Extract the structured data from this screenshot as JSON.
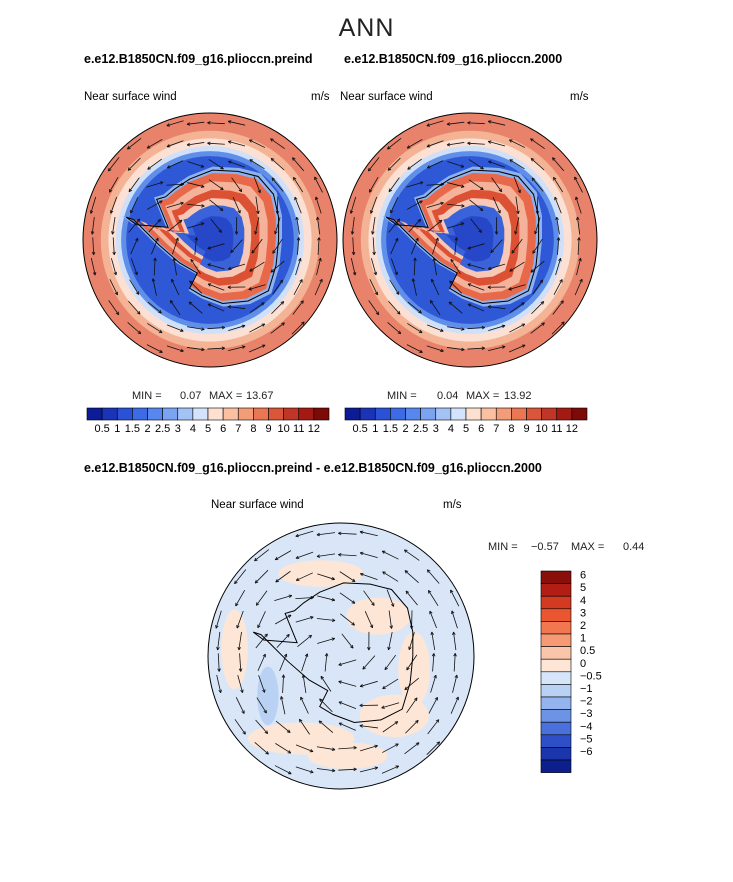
{
  "figure": {
    "title": "ANN",
    "case_a": "e.e12.B1850CN.f09_g16.plioccn.preind",
    "case_b": "e.e12.B1850CN.f09_g16.plioccn.2000",
    "diff_title": "e.e12.B1850CN.f09_g16.plioccn.preind - e.e12.B1850CN.f09_g16.plioccn.2000"
  },
  "chart_data": [
    {
      "type": "heatmap",
      "projection": "south-polar-stereographic",
      "left_label": "Near surface wind",
      "right_label": "m/s",
      "min_label": "MIN =",
      "min_value": "0.07",
      "max_label": "MAX =",
      "max_value": "13.67",
      "colorbar_orientation": "horizontal",
      "colorbar_ticks": [
        "0.5",
        "1",
        "1.5",
        "2",
        "2.5",
        "3",
        "4",
        "5",
        "6",
        "7",
        "8",
        "9",
        "10",
        "11",
        "12"
      ],
      "colorbar_colors": [
        "#0c1b96",
        "#1a33b8",
        "#2a52d6",
        "#3d6be6",
        "#5687ee",
        "#7aa4f2",
        "#a3c3f7",
        "#d2e3fb",
        "#fde0d0",
        "#f9c0a2",
        "#f39c78",
        "#ea7752",
        "#d9563a",
        "#c03526",
        "#a41a13",
        "#7c0a07"
      ],
      "vectors": true
    },
    {
      "type": "heatmap",
      "projection": "south-polar-stereographic",
      "left_label": "Near surface wind",
      "right_label": "m/s",
      "min_label": "MIN =",
      "min_value": "0.04",
      "max_label": "MAX =",
      "max_value": "13.92",
      "colorbar_orientation": "horizontal",
      "colorbar_ticks": [
        "0.5",
        "1",
        "1.5",
        "2",
        "2.5",
        "3",
        "4",
        "5",
        "6",
        "7",
        "8",
        "9",
        "10",
        "11",
        "12"
      ],
      "colorbar_colors": [
        "#0c1b96",
        "#1a33b8",
        "#2a52d6",
        "#3d6be6",
        "#5687ee",
        "#7aa4f2",
        "#a3c3f7",
        "#d2e3fb",
        "#fde0d0",
        "#f9c0a2",
        "#f39c78",
        "#ea7752",
        "#d9563a",
        "#c03526",
        "#a41a13",
        "#7c0a07"
      ],
      "vectors": true
    },
    {
      "type": "heatmap",
      "projection": "south-polar-stereographic",
      "left_label": "Near surface wind",
      "right_label": "m/s",
      "min_label": "MIN =",
      "min_value": "−0.57",
      "max_label": "MAX =",
      "max_value": "0.44",
      "colorbar_orientation": "vertical",
      "colorbar_ticks": [
        "6",
        "5",
        "4",
        "3",
        "2",
        "1",
        "0.5",
        "0",
        "−0.5",
        "−1",
        "−2",
        "−3",
        "−4",
        "−5",
        "−6"
      ],
      "colorbar_colors": [
        "#8a0f0a",
        "#b31e14",
        "#d23a22",
        "#e9562f",
        "#f27650",
        "#f69a76",
        "#fac6ab",
        "#fde6d6",
        "#d6e6f8",
        "#b9d2f4",
        "#93b4ee",
        "#6d93e5",
        "#4a70db",
        "#2e4fc8",
        "#1b35ac",
        "#0d1f8c"
      ],
      "vectors": true
    }
  ]
}
